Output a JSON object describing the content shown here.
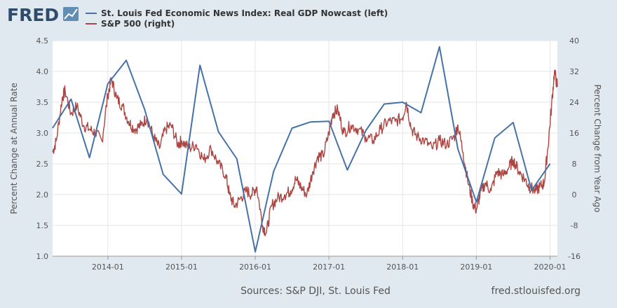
{
  "header": {
    "logo": "FRED",
    "legend": [
      {
        "label": "St. Louis Fed Economic News Index: Real GDP Nowcast (left)",
        "color": "#4572a7"
      },
      {
        "label": "S&P 500 (right)",
        "color": "#aa4643"
      }
    ]
  },
  "footer": {
    "sources": "Sources: S&P DJI, St. Louis Fed",
    "url": "fred.stlouisfed.org"
  },
  "chart_data": {
    "type": "line",
    "x_range": [
      2013.25,
      2020.1
    ],
    "x_ticks": [
      {
        "value": 2014.0,
        "label": "2014-01"
      },
      {
        "value": 2015.0,
        "label": "2015-01"
      },
      {
        "value": 2016.0,
        "label": "2016-01"
      },
      {
        "value": 2017.0,
        "label": "2017-01"
      },
      {
        "value": 2018.0,
        "label": "2018-01"
      },
      {
        "value": 2019.0,
        "label": "2019-01"
      },
      {
        "value": 2020.0,
        "label": "2020-01"
      }
    ],
    "y_left": {
      "label": "Percent Change at Annual Rate",
      "range": [
        1.0,
        4.5
      ],
      "ticks": [
        "1.0",
        "1.5",
        "2.0",
        "2.5",
        "3.0",
        "3.5",
        "4.0",
        "4.5"
      ]
    },
    "y_right": {
      "label": "Percent Change from Year Ago",
      "range": [
        -16,
        40
      ],
      "ticks": [
        "-16",
        "-8",
        "0",
        "8",
        "16",
        "24",
        "32",
        "40"
      ]
    },
    "grid": true,
    "series": [
      {
        "name": "St. Louis Fed Economic News Index: Real GDP Nowcast (left)",
        "axis": "left",
        "color": "#4572a7",
        "x": [
          2013.25,
          2013.5,
          2013.75,
          2014.0,
          2014.25,
          2014.5,
          2014.75,
          2015.0,
          2015.25,
          2015.5,
          2015.75,
          2016.0,
          2016.25,
          2016.5,
          2016.75,
          2017.0,
          2017.25,
          2017.5,
          2017.75,
          2018.0,
          2018.25,
          2018.5,
          2018.75,
          2019.0,
          2019.25,
          2019.5,
          2019.75,
          2020.0
        ],
        "y": [
          3.08,
          3.55,
          2.6,
          3.8,
          4.18,
          3.38,
          2.33,
          2.01,
          4.1,
          3.02,
          2.58,
          1.07,
          2.38,
          3.08,
          3.18,
          3.19,
          2.4,
          3.04,
          3.47,
          3.5,
          3.33,
          4.4,
          2.74,
          1.88,
          2.92,
          3.17,
          2.07,
          2.5
        ]
      },
      {
        "name": "S&P 500 (right)",
        "axis": "right",
        "color": "#aa4643",
        "x": [
          2013.25,
          2013.3,
          2013.38,
          2013.42,
          2013.5,
          2013.58,
          2013.67,
          2013.75,
          2013.83,
          2013.92,
          2014.0,
          2014.05,
          2014.12,
          2014.2,
          2014.28,
          2014.36,
          2014.45,
          2014.53,
          2014.62,
          2014.7,
          2014.78,
          2014.86,
          2014.95,
          2015.0,
          2015.1,
          2015.2,
          2015.3,
          2015.4,
          2015.5,
          2015.6,
          2015.65,
          2015.72,
          2015.8,
          2015.88,
          2015.95,
          2016.02,
          2016.1,
          2016.15,
          2016.22,
          2016.3,
          2016.4,
          2016.48,
          2016.55,
          2016.62,
          2016.7,
          2016.78,
          2016.85,
          2016.92,
          2017.0,
          2017.05,
          2017.12,
          2017.2,
          2017.3,
          2017.4,
          2017.5,
          2017.6,
          2017.7,
          2017.8,
          2017.9,
          2018.0,
          2018.05,
          2018.12,
          2018.2,
          2018.3,
          2018.4,
          2018.5,
          2018.6,
          2018.7,
          2018.75,
          2018.82,
          2018.88,
          2018.95,
          2019.0,
          2019.05,
          2019.12,
          2019.2,
          2019.28,
          2019.36,
          2019.44,
          2019.5,
          2019.58,
          2019.66,
          2019.72,
          2019.8,
          2019.86,
          2019.92,
          2019.97,
          2020.02,
          2020.06,
          2020.1
        ],
        "y": [
          11,
          14,
          25,
          27,
          21,
          23,
          18,
          17,
          16,
          14,
          26,
          30,
          25,
          23,
          19,
          17,
          18,
          20,
          15,
          12,
          17,
          18,
          13,
          14,
          12,
          13,
          9,
          12,
          8,
          5,
          0,
          -3,
          -1,
          1,
          0,
          2,
          -8,
          -10,
          -3,
          -1,
          0,
          1,
          4,
          2,
          0,
          6,
          10,
          10,
          16,
          21,
          22,
          16,
          18,
          17,
          15,
          14,
          17,
          19,
          19,
          20,
          24,
          17,
          15,
          14,
          12,
          14,
          13,
          15,
          18,
          11,
          4,
          -2,
          -4,
          0,
          3,
          1,
          6,
          5,
          7,
          9,
          6,
          4,
          2,
          1,
          2,
          3,
          12,
          23,
          32,
          28
        ]
      }
    ]
  }
}
